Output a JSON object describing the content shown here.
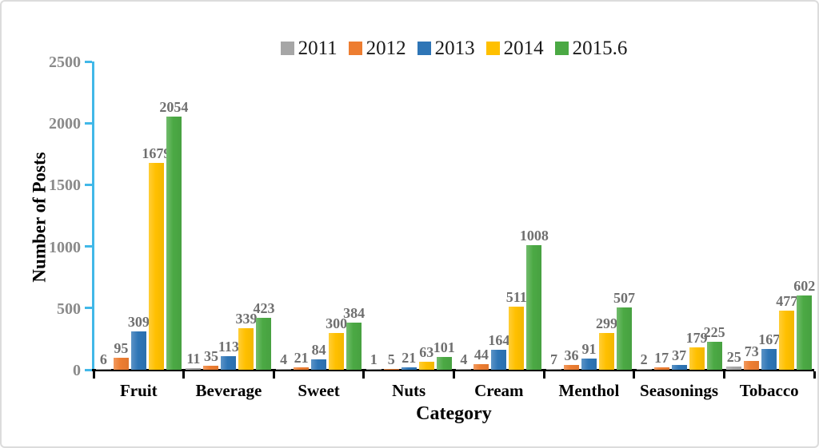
{
  "figure": {
    "background": "#ffffff",
    "border_color": "#dcdcdc"
  },
  "style": {
    "y_axis_line_color": "#41B8E8",
    "x_axis_line_color": "#000000",
    "y_tick_label_color": "#8a8a8a",
    "value_label_color": "#6f6f6f",
    "category_label_color": "#000000"
  },
  "chart_data": {
    "type": "bar",
    "title": "",
    "xlabel": "Category",
    "ylabel": "Number of Posts",
    "ylim": [
      0,
      2500
    ],
    "yticks": [
      0,
      500,
      1000,
      1500,
      2000,
      2500
    ],
    "grid": false,
    "legend_position": "top-center",
    "value_labels": true,
    "categories": [
      "Fruit",
      "Beverage",
      "Sweet",
      "Nuts",
      "Cream",
      "Menthol",
      "Seasonings",
      "Tobacco"
    ],
    "series": [
      {
        "name": "2011",
        "color": "#A6A6A6",
        "values": [
          6,
          11,
          4,
          1,
          4,
          7,
          2,
          25
        ]
      },
      {
        "name": "2012",
        "color": "#ED7D31",
        "values": [
          95,
          35,
          21,
          5,
          44,
          36,
          17,
          73
        ]
      },
      {
        "name": "2013",
        "color": "#2E75B6",
        "values": [
          309,
          113,
          84,
          21,
          164,
          91,
          37,
          167
        ]
      },
      {
        "name": "2014",
        "color": "#FFC000",
        "values": [
          1679,
          339,
          300,
          63,
          511,
          299,
          179,
          477
        ]
      },
      {
        "name": "2015.6",
        "color": "#4BA944",
        "values": [
          2054,
          423,
          384,
          101,
          1008,
          507,
          225,
          602
        ]
      }
    ]
  }
}
